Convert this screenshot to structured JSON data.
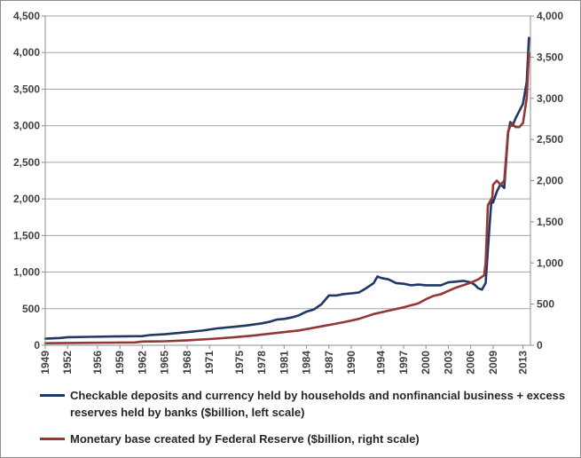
{
  "chart_data": {
    "type": "line",
    "title": "",
    "xlabel": "",
    "ylabel": "",
    "x_tick_labels": [
      "1949",
      "1952",
      "1956",
      "1959",
      "1962",
      "1965",
      "1968",
      "1971",
      "1975",
      "1978",
      "1981",
      "1984",
      "1987",
      "1990",
      "1994",
      "1997",
      "2000",
      "2003",
      "2006",
      "2009",
      "2013"
    ],
    "x_tick_years": [
      1949,
      1952,
      1956,
      1959,
      1962,
      1965,
      1968,
      1971,
      1975,
      1978,
      1981,
      1984,
      1987,
      1990,
      1994,
      1997,
      2000,
      2003,
      2006,
      2009,
      2013
    ],
    "xlim": [
      1949,
      2014
    ],
    "ylim_left": [
      0,
      4500
    ],
    "left_ticks": [
      0,
      500,
      1000,
      1500,
      2000,
      2500,
      3000,
      3500,
      4000,
      4500
    ],
    "left_tick_labels": [
      "0",
      "500",
      "1,000",
      "1,500",
      "2,000",
      "2,500",
      "3,000",
      "3,500",
      "4,000",
      "4,500"
    ],
    "ylim_right": [
      0,
      4000
    ],
    "right_ticks": [
      0,
      500,
      1000,
      1500,
      2000,
      2500,
      3000,
      3500,
      4000
    ],
    "right_tick_labels": [
      "0",
      "500",
      "1,000",
      "1,500",
      "2,000",
      "2,500",
      "3,000",
      "3,500",
      "4,000"
    ],
    "grid": "horizontal",
    "legend_position": "bottom",
    "series": [
      {
        "name": "Checkable deposits and currency held by households and nonfinancial business + excess reserves held by banks ($billion, left scale)",
        "axis": "left",
        "color": "#1f3864",
        "x": [
          1949,
          1951,
          1952,
          1955,
          1958,
          1962,
          1963,
          1965,
          1968,
          1970,
          1972,
          1974,
          1975,
          1976,
          1978,
          1979,
          1980,
          1981,
          1982,
          1983,
          1984,
          1985,
          1986,
          1987,
          1988,
          1989,
          1990,
          1991,
          1992,
          1993,
          1993.5,
          1994,
          1995,
          1996,
          1997,
          1998,
          1999,
          2000,
          2001,
          2002,
          2003,
          2004,
          2005,
          2006,
          2006.5,
          2007,
          2007.5,
          2008,
          2008.3,
          2008.6,
          2008.8,
          2009,
          2009.5,
          2010,
          2010.5,
          2011,
          2011.3,
          2011.6,
          2012,
          2012.5,
          2013,
          2013.5,
          2013.8
        ],
        "values": [
          90,
          100,
          110,
          115,
          120,
          125,
          140,
          150,
          180,
          200,
          230,
          250,
          260,
          270,
          300,
          320,
          350,
          360,
          380,
          410,
          460,
          490,
          560,
          680,
          680,
          700,
          710,
          720,
          780,
          850,
          940,
          920,
          900,
          850,
          840,
          820,
          830,
          820,
          820,
          820,
          860,
          870,
          880,
          860,
          830,
          780,
          760,
          850,
          1300,
          1750,
          2000,
          1950,
          2100,
          2200,
          2150,
          2900,
          3050,
          3000,
          3100,
          3200,
          3300,
          3600,
          4200
        ]
      },
      {
        "name": "Monetary base created by Federal Reserve ($billion, right scale)",
        "axis": "right",
        "color": "#953735",
        "x": [
          1949,
          1955,
          1961,
          1962,
          1965,
          1968,
          1971,
          1974,
          1977,
          1980,
          1983,
          1986,
          1989,
          1991,
          1993,
          1995,
          1997,
          1999,
          2000,
          2001,
          2002,
          2004,
          2006,
          2007,
          2007.8,
          2008,
          2008.3,
          2008.6,
          2008.9,
          2009,
          2009.5,
          2010,
          2010.5,
          2011,
          2011.5,
          2012,
          2012.5,
          2013,
          2013.5,
          2013.8
        ],
        "values": [
          25,
          30,
          35,
          45,
          48,
          60,
          75,
          95,
          120,
          150,
          180,
          230,
          280,
          320,
          380,
          420,
          460,
          510,
          560,
          600,
          620,
          700,
          760,
          800,
          850,
          1000,
          1700,
          1750,
          1800,
          1950,
          2000,
          1950,
          2000,
          2600,
          2700,
          2650,
          2650,
          2700,
          3000,
          3550
        ]
      }
    ]
  }
}
